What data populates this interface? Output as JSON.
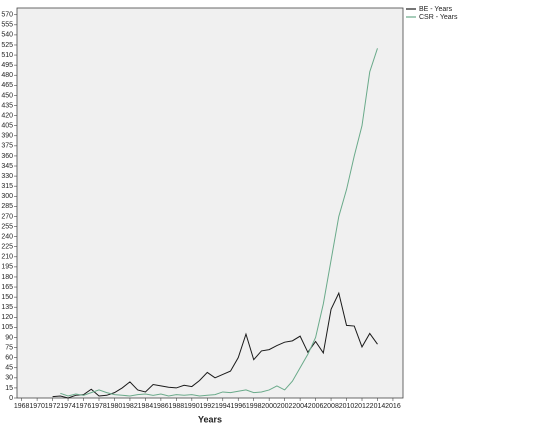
{
  "chart_data": {
    "type": "line",
    "x_label": "Years",
    "x": [
      1972,
      1973,
      1974,
      1975,
      1976,
      1977,
      1978,
      1979,
      1980,
      1981,
      1982,
      1983,
      1984,
      1985,
      1986,
      1987,
      1988,
      1989,
      1990,
      1991,
      1992,
      1993,
      1994,
      1995,
      1996,
      1997,
      1998,
      1999,
      2000,
      2001,
      2002,
      2003,
      2004,
      2005,
      2006,
      2007,
      2008,
      2009,
      2010,
      2011,
      2012,
      2013,
      2014
    ],
    "series": [
      {
        "name": "BE - Years",
        "color": "#1a1a1a",
        "values": [
          2,
          3,
          0,
          4,
          5,
          13,
          3,
          4,
          8,
          15,
          24,
          12,
          9,
          20,
          18,
          16,
          15,
          19,
          17,
          26,
          38,
          30,
          35,
          40,
          60,
          95,
          57,
          70,
          72,
          78,
          83,
          85,
          92,
          68,
          84,
          67,
          132,
          156,
          108,
          107,
          76,
          96,
          80
        ]
      },
      {
        "name": "CSR - Years",
        "color": "#6aaa8a",
        "values": [
          null,
          7,
          3,
          6,
          4,
          8,
          12,
          8,
          5,
          4,
          3,
          5,
          6,
          4,
          6,
          3,
          5,
          4,
          5,
          3,
          4,
          5,
          9,
          8,
          10,
          12,
          8,
          9,
          12,
          18,
          12,
          25,
          45,
          65,
          90,
          140,
          205,
          270,
          310,
          360,
          405,
          485,
          520
        ]
      }
    ],
    "xlim": [
      1967.4,
      2017.3
    ],
    "ylim": [
      0,
      580
    ],
    "xticks": [
      1968,
      1970,
      1972,
      1974,
      1976,
      1978,
      1980,
      1982,
      1984,
      1986,
      1988,
      1990,
      1992,
      1994,
      1996,
      1998,
      2000,
      2002,
      2004,
      2006,
      2008,
      2010,
      2012,
      2014,
      2016
    ],
    "yticks": [
      0,
      15,
      30,
      45,
      60,
      75,
      90,
      105,
      120,
      135,
      150,
      165,
      180,
      195,
      210,
      225,
      240,
      255,
      270,
      285,
      300,
      315,
      330,
      345,
      360,
      375,
      390,
      405,
      420,
      435,
      450,
      465,
      480,
      495,
      510,
      525,
      540,
      555,
      570
    ],
    "legend_position": "right"
  }
}
